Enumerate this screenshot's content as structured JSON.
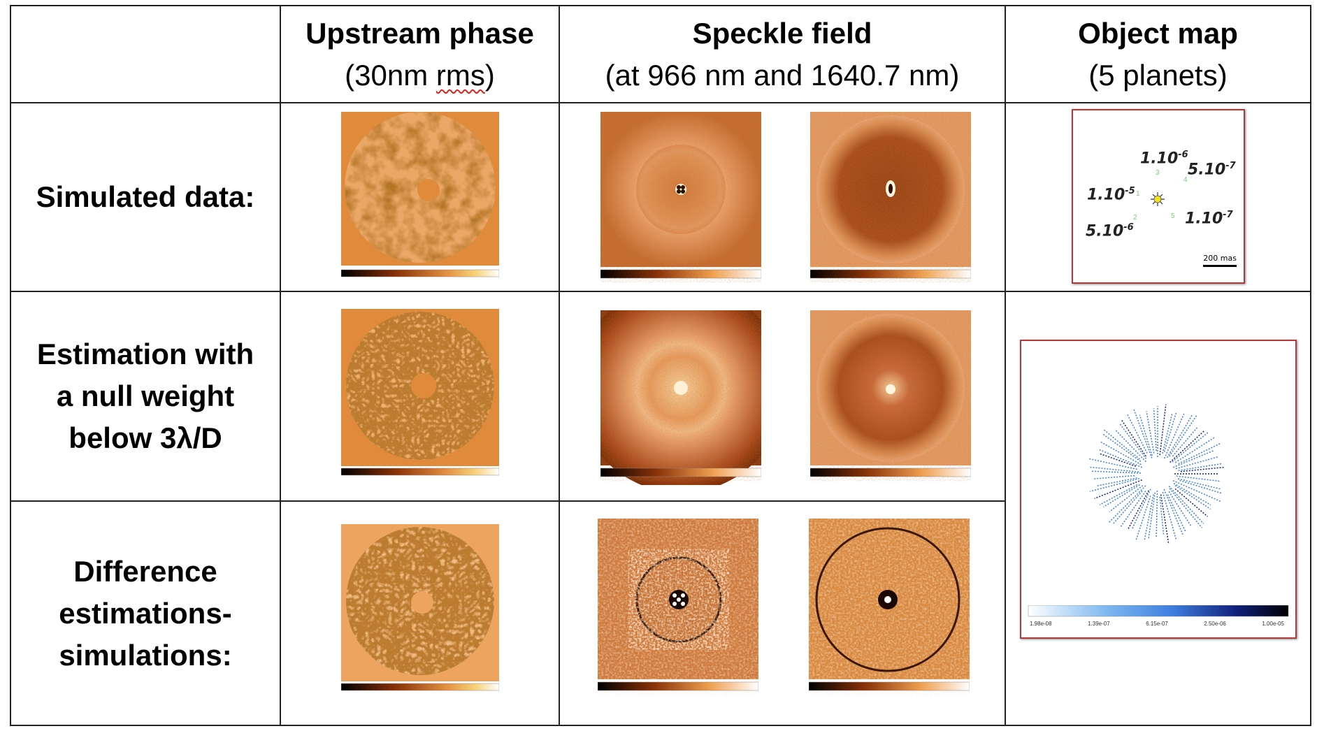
{
  "headers": {
    "col1": {
      "title": "Upstream phase",
      "sub_prefix": "(30nm ",
      "sub_squiggle": "rms",
      "sub_suffix": ")"
    },
    "col2": {
      "title": "Speckle field",
      "sub": "(at 966 nm and 1640.7 nm)"
    },
    "col3": {
      "title": "Object map",
      "sub": "(5 planets)"
    }
  },
  "rows": [
    {
      "label_lines": [
        "Simulated data:"
      ]
    },
    {
      "label_lines": [
        "Estimation with",
        "a null weight",
        "below 3λ/D"
      ]
    },
    {
      "label_lines": [
        "Difference",
        "estimations-",
        "simulations:"
      ]
    }
  ],
  "object_map_sim": {
    "annotations": [
      {
        "mantissa": "1.10",
        "exp": "-6"
      },
      {
        "mantissa": "5.10",
        "exp": "-7"
      },
      {
        "mantissa": "1.10",
        "exp": "-5"
      },
      {
        "mantissa": "1.10",
        "exp": "-7"
      },
      {
        "mantissa": "5.10",
        "exp": "-6"
      }
    ],
    "planet_numbers": [
      "1",
      "2",
      "3",
      "4",
      "5"
    ],
    "scale_label": "200 mas"
  },
  "object_map_est": {
    "colorbar_ticks": [
      "1.98e-08",
      "1.39e-07",
      "6.15e-07",
      "2.50e-06",
      "1.00e-05"
    ]
  },
  "colors": {
    "phase_bg": "#e08a3c",
    "speckle_dark": "#7a2e06",
    "speckle_mid": "#d0743a",
    "speckle_light": "#f6d6a8",
    "object_blue": "#3f7fe0",
    "frame_red": "#b03a3a"
  }
}
